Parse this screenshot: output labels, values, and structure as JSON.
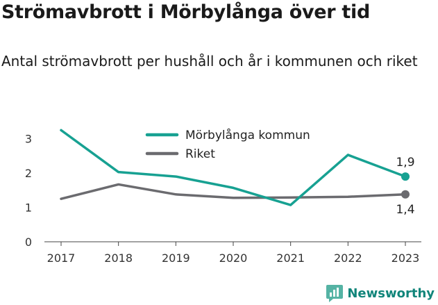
{
  "header": {
    "title": "Strömavbrott i Mörbylånga över tid",
    "subtitle": "Antal strömavbrott per hushåll och år i kommunen och riket"
  },
  "brand": {
    "name": "Newsworthy"
  },
  "chart_data": {
    "type": "line",
    "title": "Strömavbrott i Mörbylånga över tid",
    "subtitle": "Antal strömavbrott per hushåll och år i kommunen och riket",
    "xlabel": "",
    "ylabel": "",
    "x": [
      "2017",
      "2018",
      "2019",
      "2020",
      "2021",
      "2022",
      "2023"
    ],
    "yticks": [
      0,
      1,
      2,
      3
    ],
    "ylim": [
      0,
      3.5
    ],
    "grid": false,
    "legend": "top-center",
    "series": [
      {
        "name": "Mörbylånga kommun",
        "color": "#17a192",
        "values": [
          3.25,
          2.03,
          1.9,
          1.57,
          1.07,
          2.53,
          1.9
        ],
        "end_label": "1,9"
      },
      {
        "name": "Riket",
        "color": "#6b6b6f",
        "values": [
          1.25,
          1.67,
          1.38,
          1.28,
          1.29,
          1.31,
          1.38
        ],
        "end_label": "1,4"
      }
    ]
  }
}
